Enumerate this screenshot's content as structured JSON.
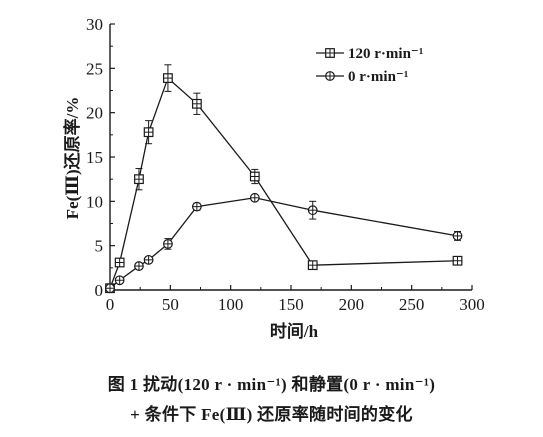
{
  "chart_data": {
    "type": "line",
    "xlabel": "时间/h",
    "ylabel": "Fe(Ⅲ)还原率/%",
    "xlim": [
      0,
      300
    ],
    "ylim": [
      0,
      30
    ],
    "xticks": [
      0,
      50,
      100,
      150,
      200,
      250,
      300
    ],
    "yticks": [
      0,
      5,
      10,
      15,
      20,
      25,
      30
    ],
    "legend_position": "top-right",
    "grid": false,
    "series": [
      {
        "name": "120 r·min⁻¹",
        "marker": "square-plus",
        "points": [
          {
            "x": 0,
            "y": 0.2,
            "err": 0
          },
          {
            "x": 8,
            "y": 3.1,
            "err": 0.3
          },
          {
            "x": 24,
            "y": 12.5,
            "err": 1.2
          },
          {
            "x": 32,
            "y": 17.8,
            "err": 1.3
          },
          {
            "x": 48,
            "y": 23.9,
            "err": 1.5
          },
          {
            "x": 72,
            "y": 21.0,
            "err": 1.2
          },
          {
            "x": 120,
            "y": 12.8,
            "err": 0.8
          },
          {
            "x": 168,
            "y": 2.8,
            "err": 0.2
          },
          {
            "x": 288,
            "y": 3.3,
            "err": 0.2
          }
        ]
      },
      {
        "name": "0 r·min⁻¹",
        "marker": "circle-plus",
        "points": [
          {
            "x": 0,
            "y": 0.2,
            "err": 0
          },
          {
            "x": 8,
            "y": 1.1,
            "err": 0.2
          },
          {
            "x": 24,
            "y": 2.7,
            "err": 0.3
          },
          {
            "x": 32,
            "y": 3.4,
            "err": 0.3
          },
          {
            "x": 48,
            "y": 5.2,
            "err": 0.6
          },
          {
            "x": 72,
            "y": 9.4,
            "err": 0.4
          },
          {
            "x": 120,
            "y": 10.4,
            "err": 0.3
          },
          {
            "x": 168,
            "y": 9.0,
            "err": 1.0
          },
          {
            "x": 288,
            "y": 6.1,
            "err": 0.5
          }
        ]
      }
    ]
  },
  "caption": {
    "line1": "图 1    扰动(120 r · min⁻¹) 和静置(0 r · min⁻¹)",
    "line2": "+ 条件下 Fe(Ⅲ) 还原率随时间的变化"
  }
}
